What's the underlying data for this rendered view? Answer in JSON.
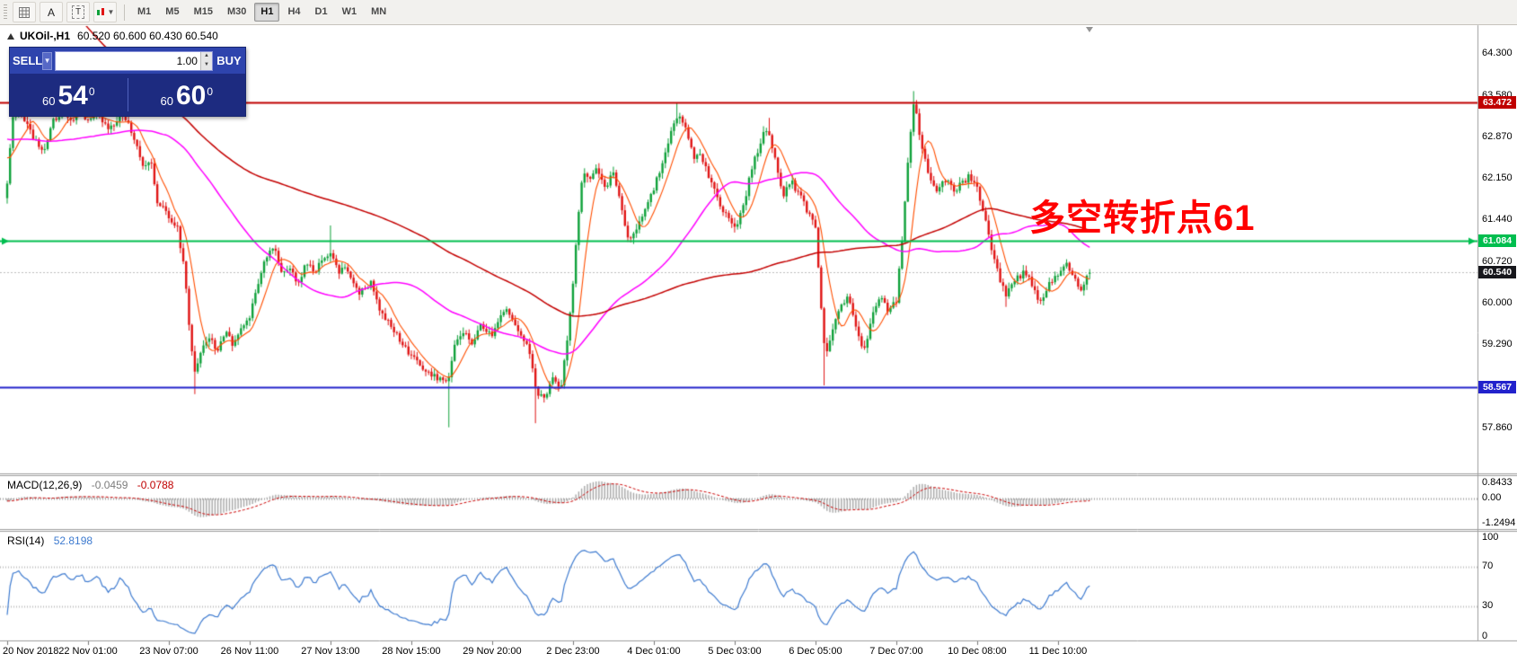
{
  "toolbar": {
    "buttons": [
      {
        "name": "grid"
      },
      {
        "name": "cursor",
        "label": "A"
      },
      {
        "name": "text",
        "label": "T"
      },
      {
        "name": "chart-style"
      }
    ],
    "timeframes": [
      "M1",
      "M5",
      "M15",
      "M30",
      "H1",
      "H4",
      "D1",
      "W1",
      "MN"
    ],
    "active_timeframe": "H1"
  },
  "chart": {
    "title": "UKOil-,H1",
    "ohlc_text": "60.520 60.600 60.430 60.540",
    "open": "60.520",
    "high": "60.600",
    "low": "60.430",
    "close": "60.540",
    "annotation": {
      "text": "多空转折点61",
      "color": "#FF0000"
    },
    "price_axis_labels": [
      "64.300",
      "63.580",
      "62.870",
      "62.150",
      "61.440",
      "60.720",
      "60.000",
      "59.290",
      "58.570",
      "57.860"
    ],
    "hlines": [
      {
        "price": 63.472,
        "label": "63.472",
        "color": "#C00000",
        "width": 2
      },
      {
        "price": 61.084,
        "label": "61.084",
        "color": "#00BE4F",
        "width": 2,
        "arrows": true
      },
      {
        "price": 58.567,
        "label": "58.567",
        "color": "#2222CC",
        "width": 2
      }
    ],
    "bid_badge": {
      "price": 60.54,
      "label": "60.540",
      "bg": "#17171C"
    },
    "time_axis_labels": [
      "20 Nov 2018",
      "22 Nov 01:00",
      "23 Nov 07:00",
      "26 Nov 11:00",
      "27 Nov 13:00",
      "28 Nov 15:00",
      "29 Nov 20:00",
      "2 Dec 23:00",
      "4 Dec 01:00",
      "5 Dec 03:00",
      "6 Dec 05:00",
      "7 Dec 07:00",
      "10 Dec 08:00",
      "11 Dec 10:00"
    ]
  },
  "trade_panel": {
    "sell_label": "SELL",
    "buy_label": "BUY",
    "volume": "1.00",
    "sell_price": {
      "small": "60",
      "big": "54",
      "sup": "0"
    },
    "buy_price": {
      "small": "60",
      "big": "60",
      "sup": "0"
    }
  },
  "macd": {
    "label": "MACD(12,26,9)",
    "value_main": "-0.0459",
    "value_signal": "-0.0788",
    "axis_labels": [
      "0.8433",
      "0.00",
      "-1.2494"
    ],
    "params": {
      "fast": 12,
      "slow": 26,
      "signal": 9
    }
  },
  "rsi": {
    "label": "RSI(14)",
    "value": "52.8198",
    "period": 14,
    "levels": [
      100,
      70,
      30,
      0
    ]
  },
  "colors": {
    "candle_up": "#0FA13A",
    "candle_down": "#E01414",
    "ma_fast": "#FF4E00",
    "ma_mid": "#FF00FF",
    "ma_slow": "#C40000",
    "bid_line": "#BDBDBD",
    "macd_hist": "#A8A8A8",
    "macd_signal": "#CC0000",
    "rsi_line": "#3E7BD0"
  },
  "chart_data": {
    "type": "candlestick",
    "symbol": "UKOil-",
    "timeframe": "H1",
    "visible_range": {
      "from": "20 Nov 2018 00:00",
      "to": "11 Dec 2018"
    },
    "key_levels": [
      63.472,
      61.084,
      60.54,
      58.567
    ],
    "last_candle": {
      "open": 60.52,
      "high": 60.6,
      "low": 60.43,
      "close": 60.54
    },
    "ma_periods": {
      "fast": 8,
      "mid": 55,
      "slow": 144
    },
    "pre_trend": {
      "from": 76.0,
      "to": 62.5,
      "bars": 150
    },
    "anchors": [
      [
        0,
        62.1
      ],
      [
        0.07,
        63.2
      ],
      [
        0.15,
        63.35
      ],
      [
        0.3,
        62.9
      ],
      [
        0.45,
        62.6
      ],
      [
        0.55,
        63.1
      ],
      [
        0.7,
        63.35
      ],
      [
        0.8,
        63.1
      ],
      [
        0.9,
        63.3
      ],
      [
        1.0,
        63.15
      ],
      [
        1.1,
        63.3
      ],
      [
        1.25,
        63.0
      ],
      [
        1.4,
        63.25
      ],
      [
        1.5,
        63.1
      ],
      [
        1.6,
        62.7
      ],
      [
        1.7,
        62.35
      ],
      [
        1.78,
        62.5
      ],
      [
        1.85,
        61.8
      ],
      [
        2.0,
        61.5
      ],
      [
        2.1,
        61.35
      ],
      [
        2.2,
        60.5
      ],
      [
        2.28,
        59.2
      ],
      [
        2.33,
        58.8
      ],
      [
        2.4,
        59.15
      ],
      [
        2.5,
        59.45
      ],
      [
        2.6,
        59.2
      ],
      [
        2.7,
        59.55
      ],
      [
        2.8,
        59.3
      ],
      [
        2.9,
        59.6
      ],
      [
        3.0,
        59.8
      ],
      [
        3.1,
        60.35
      ],
      [
        3.2,
        60.8
      ],
      [
        3.3,
        61.0
      ],
      [
        3.4,
        60.5
      ],
      [
        3.5,
        60.65
      ],
      [
        3.6,
        60.35
      ],
      [
        3.7,
        60.7
      ],
      [
        3.8,
        60.55
      ],
      [
        3.9,
        60.8
      ],
      [
        4.0,
        60.9
      ],
      [
        4.1,
        60.55
      ],
      [
        4.2,
        60.6
      ],
      [
        4.35,
        60.2
      ],
      [
        4.5,
        60.35
      ],
      [
        4.6,
        59.9
      ],
      [
        4.75,
        59.65
      ],
      [
        4.9,
        59.3
      ],
      [
        5.0,
        59.1
      ],
      [
        5.1,
        59.0
      ],
      [
        5.2,
        58.8
      ],
      [
        5.35,
        58.7
      ],
      [
        5.45,
        58.65
      ],
      [
        5.55,
        59.35
      ],
      [
        5.65,
        59.55
      ],
      [
        5.75,
        59.3
      ],
      [
        5.85,
        59.65
      ],
      [
        6.0,
        59.5
      ],
      [
        6.1,
        59.75
      ],
      [
        6.2,
        59.9
      ],
      [
        6.3,
        59.6
      ],
      [
        6.45,
        59.3
      ],
      [
        6.55,
        58.5
      ],
      [
        6.65,
        58.35
      ],
      [
        6.75,
        58.7
      ],
      [
        6.85,
        58.55
      ],
      [
        6.95,
        59.6
      ],
      [
        7.0,
        60.3
      ],
      [
        7.05,
        61.3
      ],
      [
        7.12,
        62.3
      ],
      [
        7.2,
        62.1
      ],
      [
        7.3,
        62.35
      ],
      [
        7.4,
        62.0
      ],
      [
        7.5,
        62.25
      ],
      [
        7.6,
        61.7
      ],
      [
        7.68,
        61.1
      ],
      [
        7.8,
        61.35
      ],
      [
        7.9,
        61.7
      ],
      [
        8.0,
        62.0
      ],
      [
        8.1,
        62.4
      ],
      [
        8.2,
        62.9
      ],
      [
        8.3,
        63.3
      ],
      [
        8.4,
        63.0
      ],
      [
        8.5,
        62.5
      ],
      [
        8.55,
        62.65
      ],
      [
        8.65,
        62.3
      ],
      [
        8.75,
        62.0
      ],
      [
        8.85,
        61.6
      ],
      [
        9.0,
        61.3
      ],
      [
        9.1,
        61.6
      ],
      [
        9.2,
        62.3
      ],
      [
        9.35,
        62.9
      ],
      [
        9.42,
        63.0
      ],
      [
        9.5,
        62.5
      ],
      [
        9.6,
        61.85
      ],
      [
        9.7,
        62.1
      ],
      [
        9.8,
        61.9
      ],
      [
        9.9,
        61.6
      ],
      [
        10.0,
        61.3
      ],
      [
        10.05,
        60.3
      ],
      [
        10.12,
        59.1
      ],
      [
        10.2,
        59.5
      ],
      [
        10.3,
        59.9
      ],
      [
        10.4,
        60.15
      ],
      [
        10.5,
        59.6
      ],
      [
        10.6,
        59.15
      ],
      [
        10.7,
        59.8
      ],
      [
        10.8,
        60.1
      ],
      [
        10.9,
        59.9
      ],
      [
        11.0,
        60.05
      ],
      [
        11.08,
        61.2
      ],
      [
        11.15,
        62.6
      ],
      [
        11.22,
        63.5
      ],
      [
        11.3,
        62.8
      ],
      [
        11.4,
        62.25
      ],
      [
        11.5,
        61.9
      ],
      [
        11.6,
        62.15
      ],
      [
        11.7,
        61.95
      ],
      [
        11.8,
        62.05
      ],
      [
        11.9,
        62.2
      ],
      [
        12.0,
        62.0
      ],
      [
        12.1,
        61.5
      ],
      [
        12.2,
        60.8
      ],
      [
        12.35,
        60.15
      ],
      [
        12.5,
        60.45
      ],
      [
        12.6,
        60.55
      ],
      [
        12.7,
        60.25
      ],
      [
        12.8,
        60.0
      ],
      [
        12.9,
        60.35
      ],
      [
        13.0,
        60.5
      ],
      [
        13.1,
        60.7
      ],
      [
        13.2,
        60.45
      ],
      [
        13.3,
        60.25
      ],
      [
        13.39,
        60.54
      ]
    ],
    "wick_overrides": [
      {
        "L": 0.15,
        "high": 63.52
      },
      {
        "L": 2.33,
        "low": 58.45
      },
      {
        "L": 4.0,
        "high": 61.35
      },
      {
        "L": 5.45,
        "low": 57.88
      },
      {
        "L": 6.55,
        "low": 57.95
      },
      {
        "L": 8.3,
        "high": 63.46
      },
      {
        "L": 9.42,
        "high": 63.2
      },
      {
        "L": 10.12,
        "low": 58.6
      },
      {
        "L": 11.22,
        "high": 63.66
      },
      {
        "L": 12.35,
        "low": 59.95
      }
    ]
  }
}
